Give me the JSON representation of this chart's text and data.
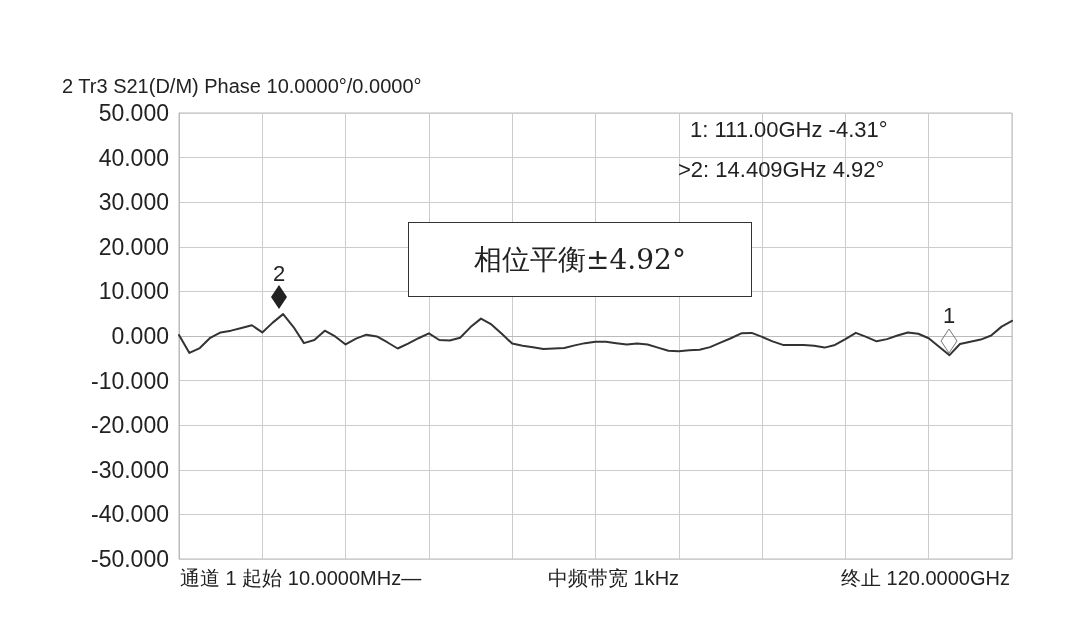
{
  "chart_data": {
    "type": "line",
    "title": "2 Tr3 S21(D/M) Phase 10.0000°/0.0000°",
    "categories": [
      null,
      null,
      null,
      null,
      null,
      null,
      null,
      null,
      null,
      null,
      null,
      null,
      null,
      null,
      null,
      null,
      null,
      null,
      null,
      null,
      null,
      null,
      null,
      null,
      null,
      null,
      null,
      null,
      null,
      null,
      null,
      null,
      null,
      null,
      null,
      null,
      null,
      null,
      null,
      null,
      null,
      null,
      null,
      null,
      null,
      null,
      null,
      null,
      null,
      null,
      null,
      null,
      null,
      null,
      null,
      null,
      null,
      null,
      null,
      null,
      null,
      null,
      null,
      null,
      null,
      null,
      null,
      null,
      null,
      null,
      null,
      null,
      null,
      null,
      null,
      null,
      null,
      null,
      null,
      null,
      null
    ],
    "series": [
      {
        "color": "#333333",
        "values": [
          0.2,
          -3.8,
          -2.7,
          -0.4,
          0.8,
          1.2,
          1.8,
          2.4,
          0.8,
          3.0,
          4.9,
          2.0,
          -1.6,
          -0.9,
          1.2,
          -0.1,
          -1.9,
          -0.6,
          0.3,
          -0.1,
          -1.4,
          -2.8,
          -1.7,
          -0.5,
          0.6,
          -0.9,
          -1.0,
          -0.4,
          2.0,
          3.9,
          2.6,
          0.5,
          -1.7,
          -2.2,
          -2.5,
          -2.9,
          -2.8,
          -2.7,
          -2.1,
          -1.6,
          -1.3,
          -1.3,
          -1.6,
          -1.9,
          -1.7,
          -1.9,
          -2.6,
          -3.3,
          -3.4,
          -3.2,
          -3.1,
          -2.5,
          -1.5,
          -0.5,
          0.6,
          0.7,
          -0.2,
          -1.2,
          -2.0,
          -2.0,
          -2.0,
          -2.2,
          -2.6,
          -2.0,
          -0.7,
          0.7,
          -0.2,
          -1.2,
          -0.7,
          0.1,
          0.8,
          0.5,
          -0.5,
          -2.4,
          -4.3,
          -1.8,
          -1.3,
          -0.8,
          0.1,
          2.1,
          3.4
        ]
      }
    ],
    "ylim": [
      -50,
      50
    ],
    "yticks": [
      {
        "value": -50,
        "label": "-50.000"
      },
      {
        "value": -40,
        "label": "-40.000"
      },
      {
        "value": -30,
        "label": "-30.000"
      },
      {
        "value": -20,
        "label": "-20.000"
      },
      {
        "value": -10,
        "label": "-10.000"
      },
      {
        "value": 0,
        "label": "0.000"
      },
      {
        "value": 10,
        "label": "10.000"
      },
      {
        "value": 20,
        "label": "20.000"
      },
      {
        "value": 30,
        "label": "30.000"
      },
      {
        "value": 40,
        "label": "40.000"
      },
      {
        "value": 50,
        "label": "50.000"
      }
    ],
    "tick_labels": "y",
    "grid": true,
    "marker": "none",
    "line_style": "solid",
    "annotations": [
      "2",
      "1",
      "1: 111.00GHz -4.31°",
      ">2: 14.409GHz 4.92°",
      "相位平衡±4.92°",
      "通道 1 起始 10.0000MHz—",
      "中频带宽 1kHz",
      "终止 120.0000GHz"
    ]
  }
}
